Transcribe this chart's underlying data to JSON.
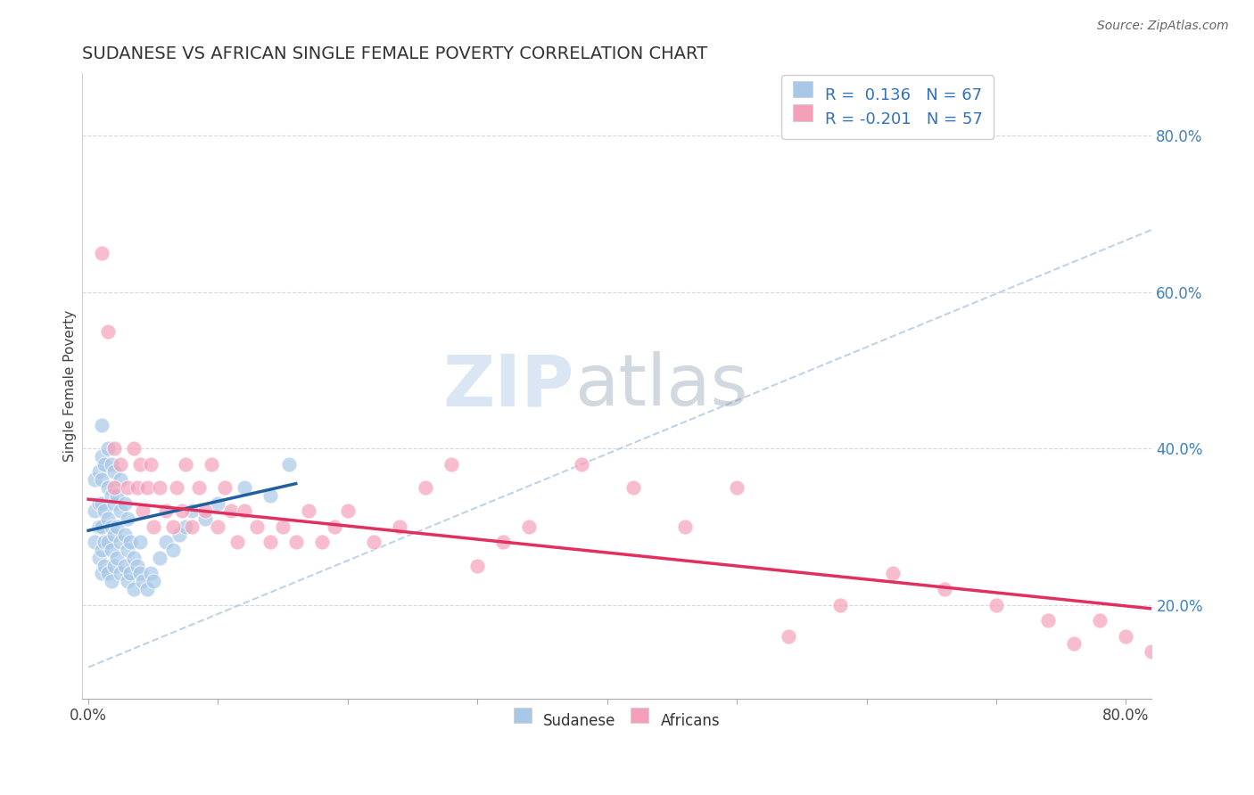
{
  "title": "SUDANESE VS AFRICAN SINGLE FEMALE POVERTY CORRELATION CHART",
  "source": "Source: ZipAtlas.com",
  "xlabel": "",
  "ylabel": "Single Female Poverty",
  "xlim": [
    -0.005,
    0.82
  ],
  "ylim": [
    0.08,
    0.88
  ],
  "yticks_right": [
    0.2,
    0.4,
    0.6,
    0.8
  ],
  "ytick_right_labels": [
    "20.0%",
    "40.0%",
    "60.0%",
    "80.0%"
  ],
  "blue_color": "#a8c8e8",
  "pink_color": "#f4a0b8",
  "blue_line_color": "#2060a0",
  "pink_line_color": "#e03060",
  "gray_dash_color": "#b0c8e0",
  "grid_color": "#d8d8d8",
  "watermark_zip": "ZIP",
  "watermark_atlas": "atlas",
  "legend_label1": "Sudanese",
  "legend_label2": "Africans",
  "blue_scatter_x": [
    0.005,
    0.005,
    0.005,
    0.008,
    0.008,
    0.008,
    0.008,
    0.01,
    0.01,
    0.01,
    0.01,
    0.01,
    0.01,
    0.01,
    0.012,
    0.012,
    0.012,
    0.012,
    0.015,
    0.015,
    0.015,
    0.015,
    0.015,
    0.018,
    0.018,
    0.018,
    0.018,
    0.018,
    0.02,
    0.02,
    0.02,
    0.02,
    0.022,
    0.022,
    0.022,
    0.025,
    0.025,
    0.025,
    0.025,
    0.028,
    0.028,
    0.028,
    0.03,
    0.03,
    0.03,
    0.032,
    0.032,
    0.035,
    0.035,
    0.038,
    0.04,
    0.04,
    0.042,
    0.045,
    0.048,
    0.05,
    0.055,
    0.06,
    0.065,
    0.07,
    0.075,
    0.08,
    0.09,
    0.1,
    0.12,
    0.14,
    0.155
  ],
  "blue_scatter_y": [
    0.28,
    0.32,
    0.36,
    0.26,
    0.3,
    0.33,
    0.37,
    0.24,
    0.27,
    0.3,
    0.33,
    0.36,
    0.39,
    0.43,
    0.25,
    0.28,
    0.32,
    0.38,
    0.24,
    0.28,
    0.31,
    0.35,
    0.4,
    0.23,
    0.27,
    0.3,
    0.34,
    0.38,
    0.25,
    0.29,
    0.33,
    0.37,
    0.26,
    0.3,
    0.34,
    0.24,
    0.28,
    0.32,
    0.36,
    0.25,
    0.29,
    0.33,
    0.23,
    0.27,
    0.31,
    0.24,
    0.28,
    0.22,
    0.26,
    0.25,
    0.24,
    0.28,
    0.23,
    0.22,
    0.24,
    0.23,
    0.26,
    0.28,
    0.27,
    0.29,
    0.3,
    0.32,
    0.31,
    0.33,
    0.35,
    0.34,
    0.38
  ],
  "pink_scatter_x": [
    0.01,
    0.015,
    0.02,
    0.02,
    0.025,
    0.03,
    0.035,
    0.038,
    0.04,
    0.042,
    0.045,
    0.048,
    0.05,
    0.055,
    0.06,
    0.065,
    0.068,
    0.072,
    0.075,
    0.08,
    0.085,
    0.09,
    0.095,
    0.1,
    0.105,
    0.11,
    0.115,
    0.12,
    0.13,
    0.14,
    0.15,
    0.16,
    0.17,
    0.18,
    0.19,
    0.2,
    0.22,
    0.24,
    0.26,
    0.28,
    0.3,
    0.32,
    0.34,
    0.38,
    0.42,
    0.46,
    0.5,
    0.54,
    0.58,
    0.62,
    0.66,
    0.7,
    0.74,
    0.76,
    0.78,
    0.8,
    0.82
  ],
  "pink_scatter_y": [
    0.65,
    0.55,
    0.4,
    0.35,
    0.38,
    0.35,
    0.4,
    0.35,
    0.38,
    0.32,
    0.35,
    0.38,
    0.3,
    0.35,
    0.32,
    0.3,
    0.35,
    0.32,
    0.38,
    0.3,
    0.35,
    0.32,
    0.38,
    0.3,
    0.35,
    0.32,
    0.28,
    0.32,
    0.3,
    0.28,
    0.3,
    0.28,
    0.32,
    0.28,
    0.3,
    0.32,
    0.28,
    0.3,
    0.35,
    0.38,
    0.25,
    0.28,
    0.3,
    0.38,
    0.35,
    0.3,
    0.35,
    0.16,
    0.2,
    0.24,
    0.22,
    0.2,
    0.18,
    0.15,
    0.18,
    0.16,
    0.14
  ],
  "blue_line_x": [
    0.0,
    0.16
  ],
  "blue_line_y_start": 0.295,
  "blue_line_y_end": 0.355,
  "pink_line_x": [
    0.0,
    0.82
  ],
  "pink_line_y_start": 0.335,
  "pink_line_y_end": 0.195,
  "gray_dash_line_x": [
    0.0,
    0.82
  ],
  "gray_dash_line_y_start": 0.12,
  "gray_dash_line_y_end": 0.68,
  "background_color": "#ffffff",
  "plot_bg_color": "#ffffff"
}
